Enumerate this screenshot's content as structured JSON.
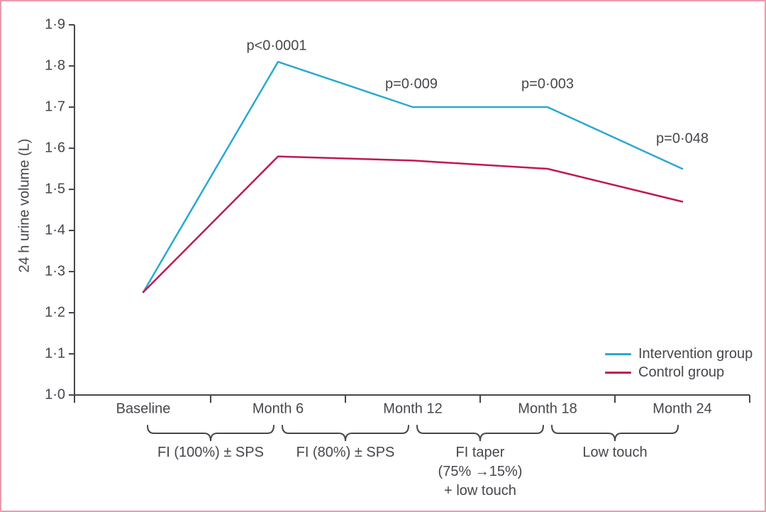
{
  "figure": {
    "border_color": "#ec9bae",
    "text_color": "#45474c",
    "axis_color": "#45474c",
    "background_color": "#ffffff"
  },
  "chart_data": {
    "type": "line",
    "title": "",
    "xlabel": "",
    "ylabel": "24 h urine volume (L)",
    "ylim": [
      1.0,
      1.9
    ],
    "ytick_step": 0.1,
    "ytick_labels": [
      "1·0",
      "1·1",
      "1·2",
      "1·3",
      "1·4",
      "1·5",
      "1·6",
      "1·7",
      "1·8",
      "1·9"
    ],
    "categories": [
      "Baseline",
      "Month 6",
      "Month 12",
      "Month 18",
      "Month 24"
    ],
    "grid": false,
    "legend_position": "inside-lower-right",
    "series": [
      {
        "name": "Intervention group",
        "color": "#2aa9d0",
        "values": [
          1.25,
          1.81,
          1.7,
          1.7,
          1.55
        ]
      },
      {
        "name": "Control group",
        "color": "#c01950",
        "values": [
          1.25,
          1.58,
          1.57,
          1.55,
          1.47
        ]
      }
    ],
    "annotations": [
      {
        "text": "p<0·0001",
        "category": "Month 6"
      },
      {
        "text": "p=0·009",
        "category": "Month 12"
      },
      {
        "text": "p=0·003",
        "category": "Month 18"
      },
      {
        "text": "p=0·048",
        "category": "Month 24"
      }
    ],
    "phases": [
      {
        "from": 0,
        "to": 1,
        "label_lines": [
          "FI (100%) ± SPS"
        ]
      },
      {
        "from": 1,
        "to": 2,
        "label_lines": [
          "FI (80%) ± SPS"
        ]
      },
      {
        "from": 2,
        "to": 3,
        "label_lines": [
          "FI taper",
          "(75% →15%)",
          "+ low touch"
        ]
      },
      {
        "from": 3,
        "to": 4,
        "label_lines": [
          "Low touch"
        ]
      }
    ]
  }
}
